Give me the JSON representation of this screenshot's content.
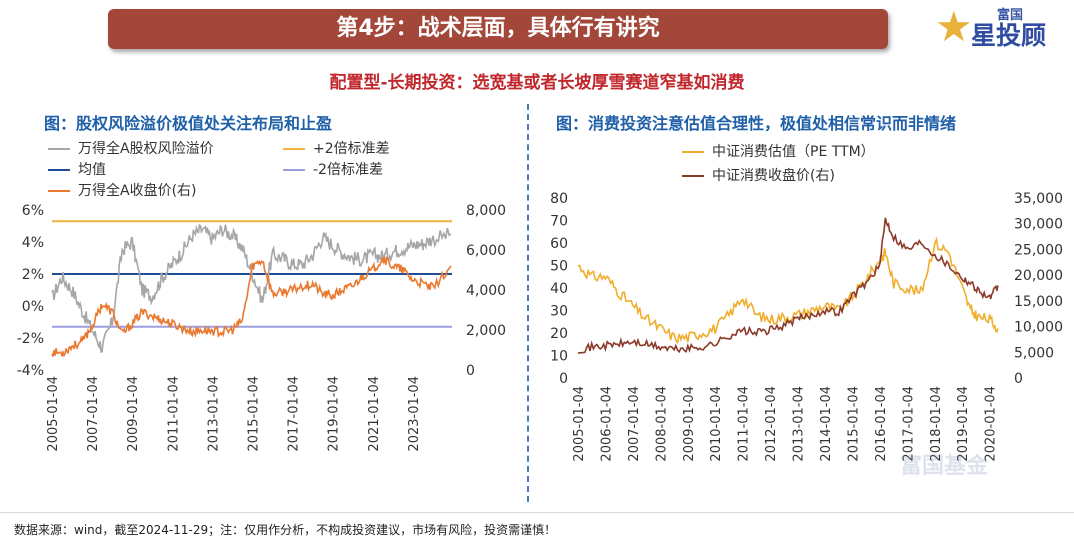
{
  "header": {
    "title": "第4步：战术层面，具体行有讲究",
    "logo_small": "富国",
    "logo_main": "星投顾",
    "subtitle": "配置型-长期投资：选宽基或者长坡厚雪赛道窄基如消费"
  },
  "left_chart_title": "图：股权风险溢价极值处关注布局和止盈",
  "right_chart_title": "图：消费投资注意估值合理性，极值处相信常识而非情绪",
  "footer": "数据来源：wind，截至2024-11-29；注：仅用作分析，不构成投资建议，市场有风险，投资需谨慎！",
  "watermark": "富国基金",
  "chart_data": [
    {
      "type": "line",
      "legend": [
        {
          "name": "万得全A股权风险溢价",
          "color": "#a6a6a6"
        },
        {
          "name": "+2倍标准差",
          "color": "#f0b43c"
        },
        {
          "name": "均值",
          "color": "#1f4e96"
        },
        {
          "name": "-2倍标准差",
          "color": "#9d9de0"
        },
        {
          "name": "万得全A收盘价(右)",
          "color": "#e8792f"
        }
      ],
      "y_left_ticks": [
        "6%",
        "4%",
        "2%",
        "0%",
        "-2%",
        "-4%"
      ],
      "y_right_ticks": [
        "8,000",
        "6,000",
        "4,000",
        "2,000",
        "0"
      ],
      "x_ticks": [
        "2005-01-04",
        "2007-01-04",
        "2009-01-04",
        "2011-01-04",
        "2013-01-04",
        "2015-01-04",
        "2017-01-04",
        "2019-01-04",
        "2021-01-04",
        "2023-01-04"
      ],
      "ylim_left": [
        -4,
        6
      ],
      "ylim_right": [
        0,
        8000
      ],
      "reference_lines": {
        "plus2sd": 5.3,
        "mean": 2.0,
        "minus2sd": -1.3
      },
      "x_years": [
        2005,
        2005.5,
        2006,
        2006.5,
        2007,
        2007.5,
        2008,
        2008.5,
        2009,
        2009.5,
        2010,
        2010.5,
        2011,
        2011.5,
        2012,
        2012.5,
        2013,
        2013.5,
        2014,
        2014.5,
        2015,
        2015.5,
        2016,
        2016.5,
        2017,
        2017.5,
        2018,
        2018.5,
        2019,
        2019.5,
        2020,
        2020.5,
        2021,
        2021.5,
        2022,
        2022.5,
        2023,
        2023.5,
        2024,
        2024.9
      ],
      "erp_percent": [
        0.5,
        1.8,
        1.0,
        -0.3,
        -1.5,
        -2.6,
        -1.0,
        3.5,
        4.0,
        1.0,
        0.6,
        1.8,
        2.6,
        3.4,
        4.4,
        4.8,
        4.2,
        4.8,
        4.4,
        3.6,
        2.0,
        0.3,
        3.2,
        3.0,
        2.6,
        2.6,
        3.2,
        4.3,
        3.8,
        3.3,
        3.0,
        2.9,
        3.2,
        3.1,
        3.4,
        3.6,
        3.8,
        3.9,
        4.2,
        4.5
      ],
      "close_index": [
        900,
        850,
        1200,
        1400,
        2200,
        3300,
        2900,
        1800,
        2300,
        2900,
        2700,
        2500,
        2300,
        2100,
        1900,
        2000,
        1950,
        1900,
        2000,
        2500,
        5200,
        5500,
        3800,
        3900,
        4000,
        4200,
        4300,
        3800,
        3700,
        4000,
        4200,
        4700,
        5000,
        5600,
        5200,
        5000,
        4500,
        4300,
        4100,
        5200
      ]
    },
    {
      "type": "line",
      "legend": [
        {
          "name": "中证消费估值（PE TTM）",
          "color": "#f0ae2c"
        },
        {
          "name": "中证消费收盘价(右)",
          "color": "#8b3a2a"
        }
      ],
      "y_left_ticks": [
        "80",
        "70",
        "60",
        "50",
        "40",
        "30",
        "20",
        "10",
        "0"
      ],
      "y_right_ticks": [
        "35,000",
        "30,000",
        "25,000",
        "20,000",
        "15,000",
        "10,000",
        "5,000",
        "0"
      ],
      "x_ticks": [
        "2005-01-04",
        "2006-01-04",
        "2007-01-04",
        "2008-01-04",
        "2009-01-04",
        "2010-01-04",
        "2011-01-04",
        "2012-01-04",
        "2013-01-04",
        "2014-01-04",
        "2015-01-04",
        "2016-01-04",
        "2017-01-04",
        "2018-01-04",
        "2019-01-04",
        "2020-01-04"
      ],
      "ylim_left": [
        0,
        80
      ],
      "ylim_right": [
        0,
        35000
      ],
      "x_years": [
        2005,
        2005.5,
        2006,
        2006.5,
        2007,
        2007.5,
        2008,
        2008.5,
        2009,
        2009.5,
        2010,
        2010.5,
        2011,
        2011.5,
        2012,
        2012.5,
        2013,
        2013.5,
        2014,
        2014.5,
        2015,
        2015.5,
        2016,
        2016.2,
        2016.5,
        2017,
        2017.5,
        2018,
        2018.5,
        2019,
        2019.3,
        2019.6,
        2020,
        2020.3
      ],
      "pe_ttm": [
        50,
        45,
        45,
        38,
        32,
        26,
        22,
        18,
        18,
        20,
        22,
        28,
        36,
        28,
        26,
        27,
        28,
        30,
        32,
        30,
        36,
        44,
        52,
        56,
        42,
        40,
        38,
        60,
        56,
        40,
        30,
        27,
        26,
        22
      ],
      "close_index": [
        5500,
        6000,
        6300,
        6600,
        7000,
        6500,
        6000,
        5600,
        5700,
        6000,
        6700,
        8200,
        9200,
        8800,
        9300,
        10200,
        11500,
        12200,
        13200,
        12800,
        16000,
        18500,
        22000,
        31000,
        27500,
        25000,
        26500,
        24000,
        22000,
        19500,
        18500,
        17000,
        15500,
        18000
      ]
    }
  ]
}
